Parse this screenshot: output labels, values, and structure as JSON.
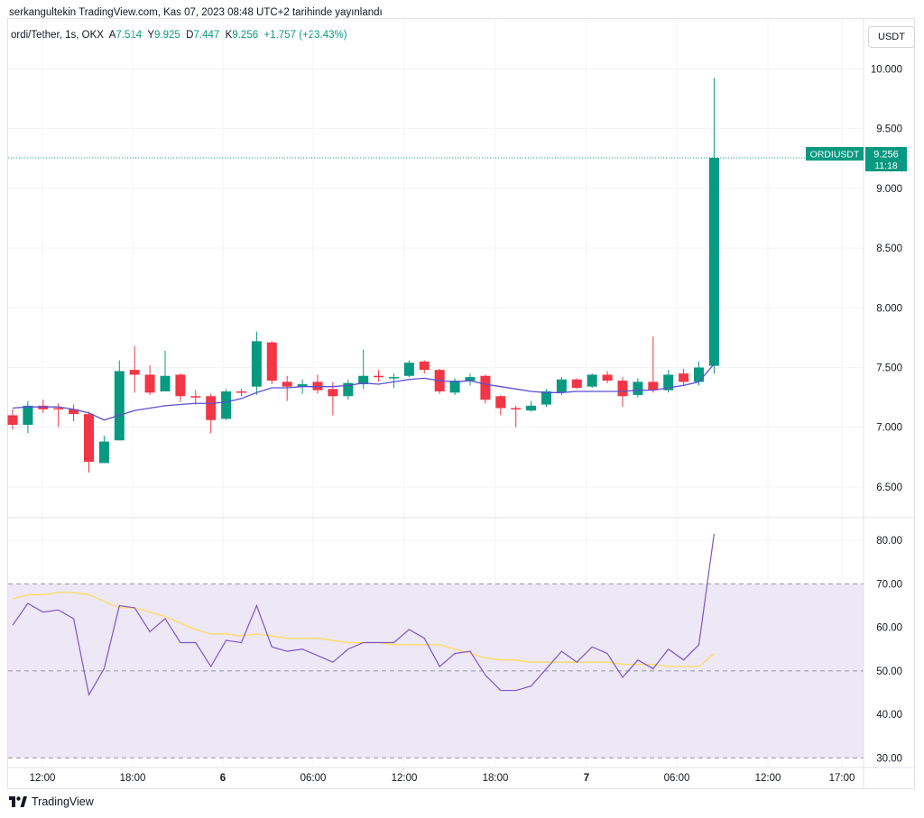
{
  "header": {
    "publish_line": "serkangultekin TradingView.com, Kas 07, 2023 08:48 UTC+2 tarihinde yayınlandı"
  },
  "legend": {
    "symbol": "ordi/Tether, 1s, OKX",
    "o_label": "A",
    "o_value": "7.514",
    "h_label": "Y",
    "h_value": "9.925",
    "l_label": "D",
    "l_value": "7.447",
    "c_label": "K",
    "c_value": "9.256",
    "change": "+1.757 (+23.43%)"
  },
  "currency_button": "USDT",
  "price_tag": {
    "symbol": "ORDIUSDT",
    "price": "9.256",
    "countdown": "11:18"
  },
  "colors": {
    "up": "#089981",
    "down": "#f23645",
    "ma": "#5b4fcf",
    "rsi_line": "#7e57c2",
    "rsi_ma": "#fddd5c",
    "rsi_band": "#ede7f6",
    "grid": "#f0f3fa",
    "text": "#131722"
  },
  "footer": {
    "brand": "TradingView",
    "logo_icon": "tradingview-logo-icon"
  },
  "chart_data": [
    {
      "type": "candlestick",
      "ylim": [
        6.25,
        10.2
      ],
      "y_ticks": [
        "10.000",
        "9.500",
        "9.000",
        "8.500",
        "8.000",
        "7.500",
        "7.000",
        "6.500"
      ],
      "x_tick_labels": [
        "12:00",
        "18:00",
        "6",
        "06:00",
        "12:00",
        "18:00",
        "7",
        "06:00",
        "12:00",
        "17:00"
      ],
      "candles": [
        {
          "o": 7.1,
          "h": 7.15,
          "l": 6.98,
          "c": 7.02
        },
        {
          "o": 7.02,
          "h": 7.22,
          "l": 6.95,
          "c": 7.18
        },
        {
          "o": 7.18,
          "h": 7.23,
          "l": 7.12,
          "c": 7.15
        },
        {
          "o": 7.16,
          "h": 7.2,
          "l": 7.0,
          "c": 7.15
        },
        {
          "o": 7.15,
          "h": 7.19,
          "l": 7.05,
          "c": 7.11
        },
        {
          "o": 7.11,
          "h": 7.13,
          "l": 6.62,
          "c": 6.71
        },
        {
          "o": 6.7,
          "h": 6.93,
          "l": 6.7,
          "c": 6.88
        },
        {
          "o": 6.89,
          "h": 7.56,
          "l": 6.89,
          "c": 7.47
        },
        {
          "o": 7.48,
          "h": 7.68,
          "l": 7.29,
          "c": 7.44
        },
        {
          "o": 7.44,
          "h": 7.52,
          "l": 7.27,
          "c": 7.29
        },
        {
          "o": 7.3,
          "h": 7.64,
          "l": 7.3,
          "c": 7.43
        },
        {
          "o": 7.44,
          "h": 7.45,
          "l": 7.21,
          "c": 7.26
        },
        {
          "o": 7.26,
          "h": 7.31,
          "l": 7.19,
          "c": 7.25
        },
        {
          "o": 7.26,
          "h": 7.28,
          "l": 6.95,
          "c": 7.06
        },
        {
          "o": 7.07,
          "h": 7.32,
          "l": 7.06,
          "c": 7.3
        },
        {
          "o": 7.3,
          "h": 7.32,
          "l": 7.26,
          "c": 7.29
        },
        {
          "o": 7.34,
          "h": 7.8,
          "l": 7.27,
          "c": 7.72
        },
        {
          "o": 7.71,
          "h": 7.72,
          "l": 7.36,
          "c": 7.39
        },
        {
          "o": 7.38,
          "h": 7.43,
          "l": 7.22,
          "c": 7.34
        },
        {
          "o": 7.34,
          "h": 7.4,
          "l": 7.28,
          "c": 7.36
        },
        {
          "o": 7.38,
          "h": 7.44,
          "l": 7.28,
          "c": 7.31
        },
        {
          "o": 7.32,
          "h": 7.38,
          "l": 7.1,
          "c": 7.26
        },
        {
          "o": 7.26,
          "h": 7.4,
          "l": 7.23,
          "c": 7.37
        },
        {
          "o": 7.36,
          "h": 7.65,
          "l": 7.32,
          "c": 7.43
        },
        {
          "o": 7.43,
          "h": 7.48,
          "l": 7.38,
          "c": 7.42
        },
        {
          "o": 7.42,
          "h": 7.45,
          "l": 7.33,
          "c": 7.42
        },
        {
          "o": 7.43,
          "h": 7.56,
          "l": 7.42,
          "c": 7.54
        },
        {
          "o": 7.55,
          "h": 7.56,
          "l": 7.45,
          "c": 7.48
        },
        {
          "o": 7.48,
          "h": 7.49,
          "l": 7.28,
          "c": 7.3
        },
        {
          "o": 7.29,
          "h": 7.41,
          "l": 7.27,
          "c": 7.39
        },
        {
          "o": 7.39,
          "h": 7.45,
          "l": 7.35,
          "c": 7.42
        },
        {
          "o": 7.43,
          "h": 7.44,
          "l": 7.2,
          "c": 7.23
        },
        {
          "o": 7.26,
          "h": 7.27,
          "l": 7.1,
          "c": 7.16
        },
        {
          "o": 7.16,
          "h": 7.18,
          "l": 7.0,
          "c": 7.15
        },
        {
          "o": 7.14,
          "h": 7.22,
          "l": 7.13,
          "c": 7.18
        },
        {
          "o": 7.19,
          "h": 7.32,
          "l": 7.17,
          "c": 7.3
        },
        {
          "o": 7.29,
          "h": 7.42,
          "l": 7.27,
          "c": 7.4
        },
        {
          "o": 7.4,
          "h": 7.41,
          "l": 7.32,
          "c": 7.33
        },
        {
          "o": 7.34,
          "h": 7.45,
          "l": 7.33,
          "c": 7.44
        },
        {
          "o": 7.44,
          "h": 7.47,
          "l": 7.37,
          "c": 7.39
        },
        {
          "o": 7.39,
          "h": 7.42,
          "l": 7.17,
          "c": 7.26
        },
        {
          "o": 7.27,
          "h": 7.41,
          "l": 7.25,
          "c": 7.38
        },
        {
          "o": 7.38,
          "h": 7.76,
          "l": 7.29,
          "c": 7.31
        },
        {
          "o": 7.31,
          "h": 7.48,
          "l": 7.29,
          "c": 7.44
        },
        {
          "o": 7.45,
          "h": 7.49,
          "l": 7.35,
          "c": 7.38
        },
        {
          "o": 7.38,
          "h": 7.55,
          "l": 7.35,
          "c": 7.5
        },
        {
          "o": 7.514,
          "h": 9.925,
          "l": 7.447,
          "c": 9.256
        }
      ],
      "ma": [
        7.16,
        7.17,
        7.17,
        7.17,
        7.15,
        7.12,
        7.06,
        7.1,
        7.14,
        7.16,
        7.18,
        7.19,
        7.2,
        7.2,
        7.21,
        7.24,
        7.29,
        7.33,
        7.33,
        7.34,
        7.34,
        7.34,
        7.35,
        7.37,
        7.36,
        7.38,
        7.4,
        7.41,
        7.39,
        7.38,
        7.39,
        7.36,
        7.34,
        7.32,
        7.3,
        7.29,
        7.29,
        7.3,
        7.3,
        7.3,
        7.3,
        7.31,
        7.31,
        7.33,
        7.35,
        7.38,
        7.53
      ],
      "last_price": 9.256
    },
    {
      "type": "line",
      "ylim": [
        28,
        85
      ],
      "y_ticks": [
        "80.00",
        "70.00",
        "60.00",
        "50.00",
        "40.00",
        "30.00"
      ],
      "band": [
        30,
        70
      ],
      "midline": 50,
      "series": [
        {
          "values": [
            60.5,
            65.5,
            63.5,
            64.0,
            62.0,
            44.5,
            50.5,
            65.0,
            64.5,
            59.0,
            62.0,
            56.5,
            56.5,
            51.0,
            57.0,
            56.5,
            65.0,
            55.5,
            54.5,
            55.0,
            53.5,
            52.0,
            55.0,
            56.5,
            56.5,
            56.5,
            59.5,
            57.5,
            51.0,
            54.0,
            54.5,
            49.0,
            45.5,
            45.5,
            46.5,
            50.5,
            54.5,
            52.0,
            55.5,
            54.0,
            48.5,
            52.5,
            50.5,
            55.0,
            52.5,
            56.0,
            81.5
          ]
        },
        {
          "values": [
            66.5,
            67.5,
            67.5,
            68.0,
            68.0,
            67.5,
            66.0,
            64.5,
            64.5,
            63.5,
            62.5,
            61.0,
            59.5,
            58.5,
            58.5,
            58.0,
            58.5,
            58.0,
            57.5,
            57.5,
            57.5,
            57.0,
            56.5,
            56.5,
            56.5,
            56.0,
            56.0,
            56.0,
            56.0,
            55.0,
            54.0,
            53.0,
            52.5,
            52.5,
            52.0,
            52.0,
            52.0,
            52.0,
            52.0,
            52.0,
            51.5,
            51.5,
            51.5,
            51.0,
            51.0,
            51.0,
            54.0
          ]
        }
      ]
    }
  ]
}
